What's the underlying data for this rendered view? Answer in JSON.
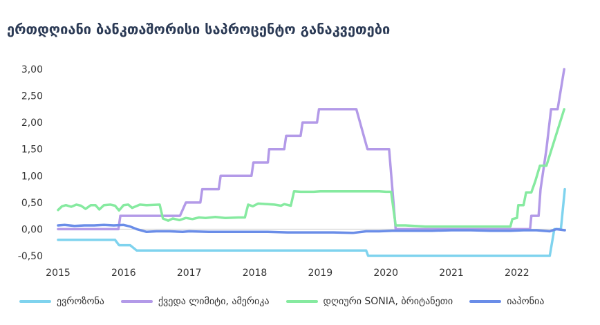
{
  "chart_data": {
    "type": "line",
    "title": "ერთდღიანი ბანკთაშორისი საპროცენტო განაკვეთები",
    "xlabel": "",
    "ylabel": "",
    "x_ticks": [
      "2015",
      "2016",
      "2017",
      "2018",
      "2019",
      "2020",
      "2021",
      "2022"
    ],
    "y_ticks": [
      "-0,50",
      "0,00",
      "0,50",
      "1,00",
      "1,50",
      "2,00",
      "2,50",
      "3,00"
    ],
    "xlim": [
      2015.0,
      2022.75
    ],
    "ylim": [
      -0.5,
      3.0
    ],
    "grid": false,
    "legend_position": "bottom",
    "series": [
      {
        "name": "ევროზონა",
        "color": "#7fd3ee",
        "points": [
          [
            2015.0,
            -0.2
          ],
          [
            2015.87,
            -0.2
          ],
          [
            2015.93,
            -0.3
          ],
          [
            2016.1,
            -0.3
          ],
          [
            2016.2,
            -0.4
          ],
          [
            2019.7,
            -0.4
          ],
          [
            2019.73,
            -0.5
          ],
          [
            2022.5,
            -0.5
          ],
          [
            2022.57,
            0.0
          ],
          [
            2022.67,
            0.0
          ],
          [
            2022.73,
            0.75
          ]
        ]
      },
      {
        "name": "ქვედა ლიმიტი, ამერიკა",
        "color": "#b39ae8",
        "points": [
          [
            2015.0,
            0.0
          ],
          [
            2015.92,
            0.0
          ],
          [
            2015.95,
            0.25
          ],
          [
            2016.86,
            0.25
          ],
          [
            2016.95,
            0.5
          ],
          [
            2017.17,
            0.5
          ],
          [
            2017.2,
            0.75
          ],
          [
            2017.45,
            0.75
          ],
          [
            2017.48,
            1.0
          ],
          [
            2017.95,
            1.0
          ],
          [
            2017.98,
            1.25
          ],
          [
            2018.2,
            1.25
          ],
          [
            2018.22,
            1.5
          ],
          [
            2018.45,
            1.5
          ],
          [
            2018.48,
            1.75
          ],
          [
            2018.7,
            1.75
          ],
          [
            2018.73,
            2.0
          ],
          [
            2018.95,
            2.0
          ],
          [
            2018.98,
            2.25
          ],
          [
            2019.55,
            2.25
          ],
          [
            2019.72,
            1.5
          ],
          [
            2020.05,
            1.5
          ],
          [
            2020.15,
            0.0
          ],
          [
            2022.2,
            0.0
          ],
          [
            2022.22,
            0.25
          ],
          [
            2022.33,
            0.25
          ],
          [
            2022.36,
            0.75
          ],
          [
            2022.45,
            1.5
          ],
          [
            2022.52,
            2.25
          ],
          [
            2022.62,
            2.25
          ],
          [
            2022.72,
            3.0
          ]
        ]
      },
      {
        "name": "დღიური SONIA, ბრიტანეთი",
        "color": "#86eaa0",
        "points": [
          [
            2015.0,
            0.36
          ],
          [
            2015.06,
            0.43
          ],
          [
            2015.12,
            0.45
          ],
          [
            2015.2,
            0.42
          ],
          [
            2015.28,
            0.46
          ],
          [
            2015.35,
            0.44
          ],
          [
            2015.42,
            0.38
          ],
          [
            2015.5,
            0.45
          ],
          [
            2015.57,
            0.45
          ],
          [
            2015.63,
            0.37
          ],
          [
            2015.7,
            0.45
          ],
          [
            2015.8,
            0.46
          ],
          [
            2015.87,
            0.44
          ],
          [
            2015.93,
            0.35
          ],
          [
            2016.0,
            0.45
          ],
          [
            2016.07,
            0.46
          ],
          [
            2016.13,
            0.4
          ],
          [
            2016.25,
            0.46
          ],
          [
            2016.35,
            0.45
          ],
          [
            2016.55,
            0.46
          ],
          [
            2016.6,
            0.2
          ],
          [
            2016.68,
            0.16
          ],
          [
            2016.75,
            0.2
          ],
          [
            2016.85,
            0.17
          ],
          [
            2016.95,
            0.21
          ],
          [
            2017.05,
            0.19
          ],
          [
            2017.15,
            0.22
          ],
          [
            2017.25,
            0.21
          ],
          [
            2017.4,
            0.23
          ],
          [
            2017.55,
            0.21
          ],
          [
            2017.75,
            0.22
          ],
          [
            2017.85,
            0.22
          ],
          [
            2017.9,
            0.46
          ],
          [
            2017.97,
            0.43
          ],
          [
            2018.05,
            0.48
          ],
          [
            2018.2,
            0.47
          ],
          [
            2018.3,
            0.46
          ],
          [
            2018.4,
            0.44
          ],
          [
            2018.45,
            0.47
          ],
          [
            2018.55,
            0.44
          ],
          [
            2018.6,
            0.71
          ],
          [
            2018.7,
            0.7
          ],
          [
            2018.9,
            0.7
          ],
          [
            2019.0,
            0.71
          ],
          [
            2019.5,
            0.71
          ],
          [
            2019.9,
            0.71
          ],
          [
            2020.0,
            0.7
          ],
          [
            2020.08,
            0.7
          ],
          [
            2020.15,
            0.07
          ],
          [
            2020.3,
            0.07
          ],
          [
            2020.6,
            0.05
          ],
          [
            2021.0,
            0.05
          ],
          [
            2021.5,
            0.05
          ],
          [
            2021.9,
            0.05
          ],
          [
            2021.93,
            0.19
          ],
          [
            2022.0,
            0.21
          ],
          [
            2022.02,
            0.45
          ],
          [
            2022.1,
            0.45
          ],
          [
            2022.14,
            0.69
          ],
          [
            2022.22,
            0.69
          ],
          [
            2022.28,
            0.9
          ],
          [
            2022.35,
            1.19
          ],
          [
            2022.45,
            1.19
          ],
          [
            2022.72,
            2.25
          ]
        ]
      },
      {
        "name": "იაპონია",
        "color": "#6a8de8",
        "points": [
          [
            2015.0,
            0.07
          ],
          [
            2015.1,
            0.08
          ],
          [
            2015.25,
            0.06
          ],
          [
            2015.4,
            0.07
          ],
          [
            2015.55,
            0.07
          ],
          [
            2015.7,
            0.08
          ],
          [
            2015.85,
            0.07
          ],
          [
            2016.0,
            0.08
          ],
          [
            2016.1,
            0.05
          ],
          [
            2016.2,
            0.0
          ],
          [
            2016.35,
            -0.05
          ],
          [
            2016.5,
            -0.04
          ],
          [
            2016.7,
            -0.04
          ],
          [
            2016.9,
            -0.05
          ],
          [
            2017.0,
            -0.04
          ],
          [
            2017.3,
            -0.05
          ],
          [
            2017.6,
            -0.05
          ],
          [
            2017.9,
            -0.05
          ],
          [
            2018.2,
            -0.05
          ],
          [
            2018.5,
            -0.06
          ],
          [
            2018.9,
            -0.06
          ],
          [
            2019.2,
            -0.06
          ],
          [
            2019.5,
            -0.07
          ],
          [
            2019.7,
            -0.04
          ],
          [
            2019.9,
            -0.04
          ],
          [
            2020.1,
            -0.03
          ],
          [
            2020.4,
            -0.03
          ],
          [
            2020.7,
            -0.03
          ],
          [
            2021.0,
            -0.02
          ],
          [
            2021.3,
            -0.02
          ],
          [
            2021.6,
            -0.03
          ],
          [
            2021.9,
            -0.03
          ],
          [
            2022.1,
            -0.02
          ],
          [
            2022.3,
            -0.02
          ],
          [
            2022.5,
            -0.04
          ],
          [
            2022.6,
            0.0
          ],
          [
            2022.73,
            -0.02
          ]
        ]
      }
    ]
  }
}
